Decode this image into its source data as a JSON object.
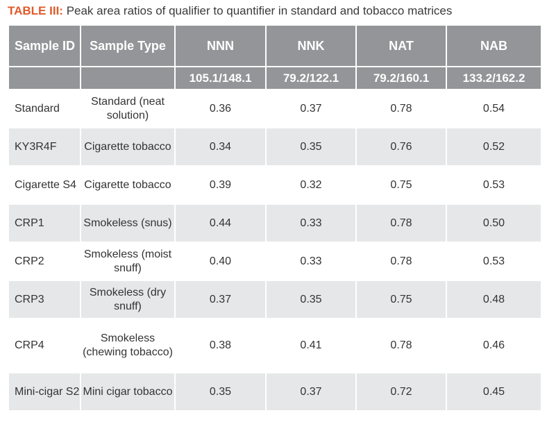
{
  "caption": {
    "label": "TABLE III:",
    "text": "Peak area ratios of qualifier to quantifier in standard and tobacco matrices"
  },
  "table": {
    "headers": [
      "Sample ID",
      "Sample Type",
      "NNN",
      "NNK",
      "NAT",
      "NAB"
    ],
    "subheaders": [
      "",
      "",
      "105.1/148.1",
      "79.2/122.1",
      "79.2/160.1",
      "133.2/162.2"
    ],
    "rows": [
      [
        "Standard",
        "Standard (neat solution)",
        "0.36",
        "0.37",
        "0.78",
        "0.54"
      ],
      [
        "KY3R4F",
        "Cigarette tobacco",
        "0.34",
        "0.35",
        "0.76",
        "0.52"
      ],
      [
        "Cigarette S4",
        "Cigarette tobacco",
        "0.39",
        "0.32",
        "0.75",
        "0.53"
      ],
      [
        "CRP1",
        "Smokeless (snus)",
        "0.44",
        "0.33",
        "0.78",
        "0.50"
      ],
      [
        "CRP2",
        "Smokeless (moist snuff)",
        "0.40",
        "0.33",
        "0.78",
        "0.53"
      ],
      [
        "CRP3",
        "Smokeless (dry snuff)",
        "0.37",
        "0.35",
        "0.75",
        "0.48"
      ],
      [
        "CRP4",
        "Smokeless (chewing tobacco)",
        "0.38",
        "0.41",
        "0.78",
        "0.46"
      ],
      [
        "Mini-cigar S2",
        "Mini cigar tobacco",
        "0.35",
        "0.37",
        "0.72",
        "0.45"
      ]
    ]
  }
}
